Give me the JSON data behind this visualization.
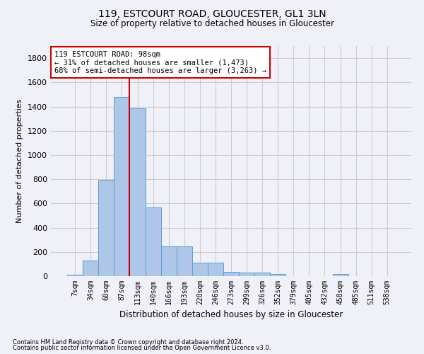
{
  "title": "119, ESTCOURT ROAD, GLOUCESTER, GL1 3LN",
  "subtitle": "Size of property relative to detached houses in Gloucester",
  "xlabel": "Distribution of detached houses by size in Gloucester",
  "ylabel": "Number of detached properties",
  "categories": [
    "7sqm",
    "34sqm",
    "60sqm",
    "87sqm",
    "113sqm",
    "140sqm",
    "166sqm",
    "193sqm",
    "220sqm",
    "246sqm",
    "273sqm",
    "299sqm",
    "326sqm",
    "352sqm",
    "379sqm",
    "405sqm",
    "432sqm",
    "458sqm",
    "485sqm",
    "511sqm",
    "538sqm"
  ],
  "values": [
    10,
    128,
    795,
    1480,
    1385,
    570,
    248,
    248,
    113,
    113,
    35,
    28,
    28,
    18,
    0,
    0,
    0,
    18,
    0,
    0,
    0
  ],
  "bar_color": "#aec6e8",
  "bar_edge_color": "#5a9fd4",
  "grid_color": "#cccccc",
  "vline_x": 3.5,
  "vline_color": "#cc0000",
  "annotation_text": "119 ESTCOURT ROAD: 98sqm\n← 31% of detached houses are smaller (1,473)\n68% of semi-detached houses are larger (3,263) →",
  "annotation_box_color": "#cc0000",
  "annotation_bg": "#ffffff",
  "ylim": [
    0,
    1900
  ],
  "yticks": [
    0,
    200,
    400,
    600,
    800,
    1000,
    1200,
    1400,
    1600,
    1800
  ],
  "footnote1": "Contains HM Land Registry data © Crown copyright and database right 2024.",
  "footnote2": "Contains public sector information licensed under the Open Government Licence v3.0.",
  "bg_color": "#f0f0f8"
}
